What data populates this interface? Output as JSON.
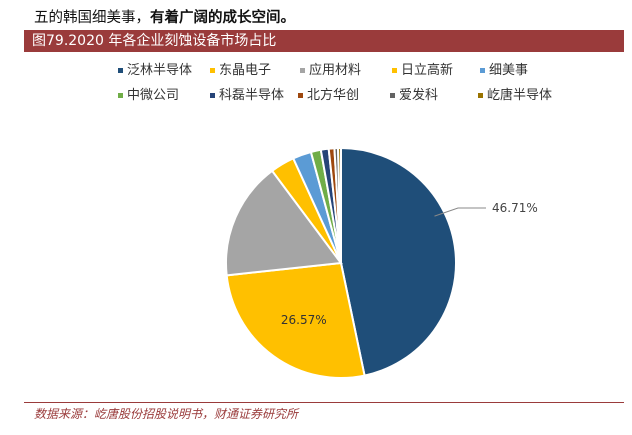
{
  "intro": {
    "plain": "五的韩国细美事，",
    "bold": "有着广阔的成长空间。"
  },
  "figure_title": "图79.2020 年各企业刻蚀设备市场占比",
  "source": "数据来源：屹唐股份招股说明书，财通证券研究所",
  "chart_data": {
    "type": "pie",
    "title": "",
    "slices": [
      {
        "name": "泛林半导体",
        "value": 46.71,
        "color": "#1f4e79",
        "label": "46.71%"
      },
      {
        "name": "东晶电子",
        "value": 26.57,
        "color": "#ffc000",
        "label": "26.57%"
      },
      {
        "name": "应用材料",
        "value": 16.5,
        "color": "#a5a5a5"
      },
      {
        "name": "日立高新",
        "value": 3.4,
        "color": "#ffc000"
      },
      {
        "name": "细美事",
        "value": 2.6,
        "color": "#5b9bd5"
      },
      {
        "name": "中微公司",
        "value": 1.4,
        "color": "#70ad47"
      },
      {
        "name": "科磊半导体",
        "value": 1.1,
        "color": "#264478"
      },
      {
        "name": "北方华创",
        "value": 0.8,
        "color": "#9e480e"
      },
      {
        "name": "爱发科",
        "value": 0.5,
        "color": "#636363"
      },
      {
        "name": "屹唐半导体",
        "value": 0.41,
        "color": "#997300"
      }
    ],
    "legend_position": "top"
  }
}
